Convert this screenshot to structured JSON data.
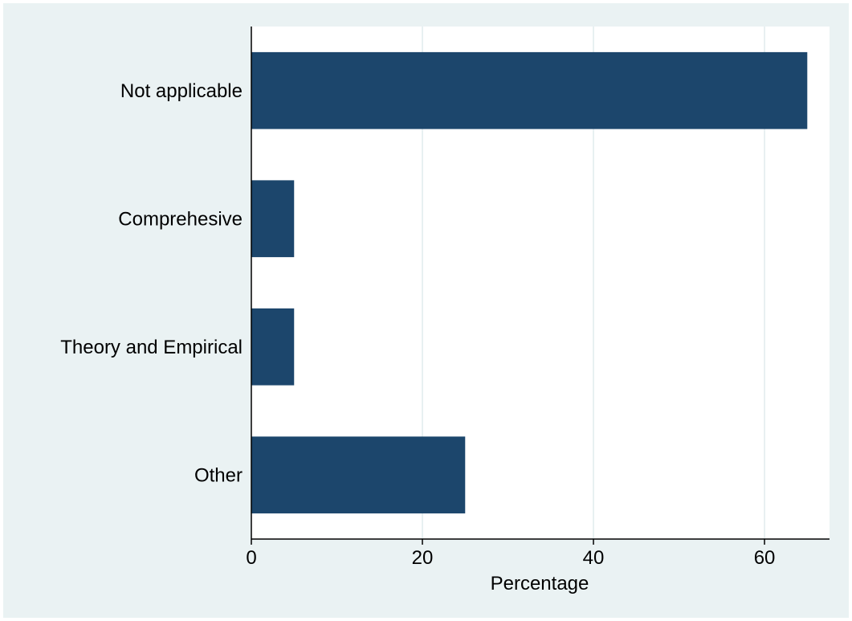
{
  "chart_data": {
    "type": "bar",
    "orientation": "horizontal",
    "categories": [
      "Not applicable",
      "Comprehesive",
      "Theory and Empirical",
      "Other"
    ],
    "values": [
      65,
      5,
      5,
      25
    ],
    "xlabel": "Percentage",
    "ylabel": "",
    "title": "",
    "xlim": [
      0,
      67.6
    ],
    "xticks": [
      0,
      20,
      40,
      60
    ],
    "xtick_labels": [
      "0",
      "20",
      "40",
      "60"
    ],
    "grid": "vertical",
    "legend": "none",
    "colors": {
      "bar": "#1c466c",
      "background": "#eaf2f3",
      "plot_background": "#ffffff",
      "grid": "#e0ebed",
      "axis": "#000000"
    }
  }
}
